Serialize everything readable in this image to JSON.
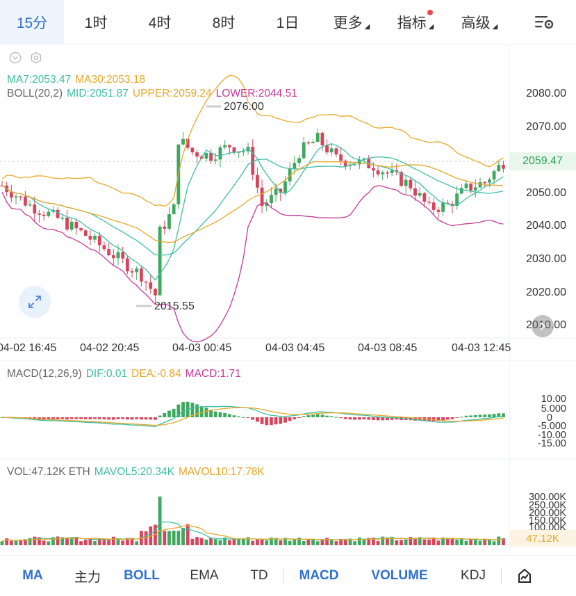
{
  "tabs": [
    {
      "label": "15分",
      "active": true
    },
    {
      "label": "1时"
    },
    {
      "label": "4时"
    },
    {
      "label": "8时"
    },
    {
      "label": "1日"
    },
    {
      "label": "更多",
      "caret": true
    },
    {
      "label": "指标",
      "caret": true,
      "dot": true
    },
    {
      "label": "高级",
      "caret": true
    }
  ],
  "main_legend": {
    "ma7": "MA7:2053.47",
    "ma30": "MA30:2053.18",
    "boll": "BOLL(20,2)",
    "mid": "MID:2051.87",
    "upper": "UPPER:2059.24",
    "lower": "LOWER:2044.51"
  },
  "price_axis": [
    "2080.00",
    "2070.00",
    "2060.00",
    "2050.00",
    "2040.00",
    "2030.00",
    "2020.00",
    "2010.00"
  ],
  "current_price": "2059.47",
  "high_label": "2076.00",
  "low_label": "2015.55",
  "time_axis": [
    "04-02 16:45",
    "04-02 20:45",
    "04-03 00:45",
    "04-03 04:45",
    "04-03 08:45",
    "04-03 12:45"
  ],
  "macd_legend": {
    "name": "MACD(12,26,9)",
    "dif": "DIF:0.01",
    "dea": "DEA:-0.84",
    "macd": "MACD:1.71"
  },
  "macd_axis": [
    "10.00",
    "5.000",
    "0",
    "-5.000",
    "-10.00",
    "-15.00"
  ],
  "vol_legend": {
    "vol": "VOL:47.12K ETH",
    "mavol5": "MAVOL5:20.34K",
    "mavol10": "MAVOL10:17.78K"
  },
  "vol_axis": [
    "300.00K",
    "250.00K",
    "200.00K",
    "150.00K",
    "100.00K"
  ],
  "current_vol": "47.12K",
  "indicators": [
    {
      "label": "MA",
      "on": true
    },
    {
      "label": "主力",
      "on": false
    },
    {
      "label": "BOLL",
      "on": true
    },
    {
      "label": "EMA",
      "on": false
    },
    {
      "label": "TD",
      "on": false
    },
    {
      "label": "MACD",
      "on": true
    },
    {
      "label": "VOLUME",
      "on": true
    },
    {
      "label": "KDJ",
      "on": false
    }
  ],
  "colors": {
    "up": "#3fa85f",
    "down": "#d6455d",
    "ma7": "#3cbfa4",
    "ma30": "#e9a727",
    "upper": "#e9a727",
    "mid": "#3cbfa4",
    "lower": "#c5399a",
    "accent": "#2f6fd0"
  },
  "icons": {
    "settings": "chart-settings-icon",
    "eye": "eye-icon",
    "gear": "gear-icon",
    "expand": "expand-icon",
    "scroll": "scroll-right-icon",
    "draw": "draw-tool-icon"
  }
}
